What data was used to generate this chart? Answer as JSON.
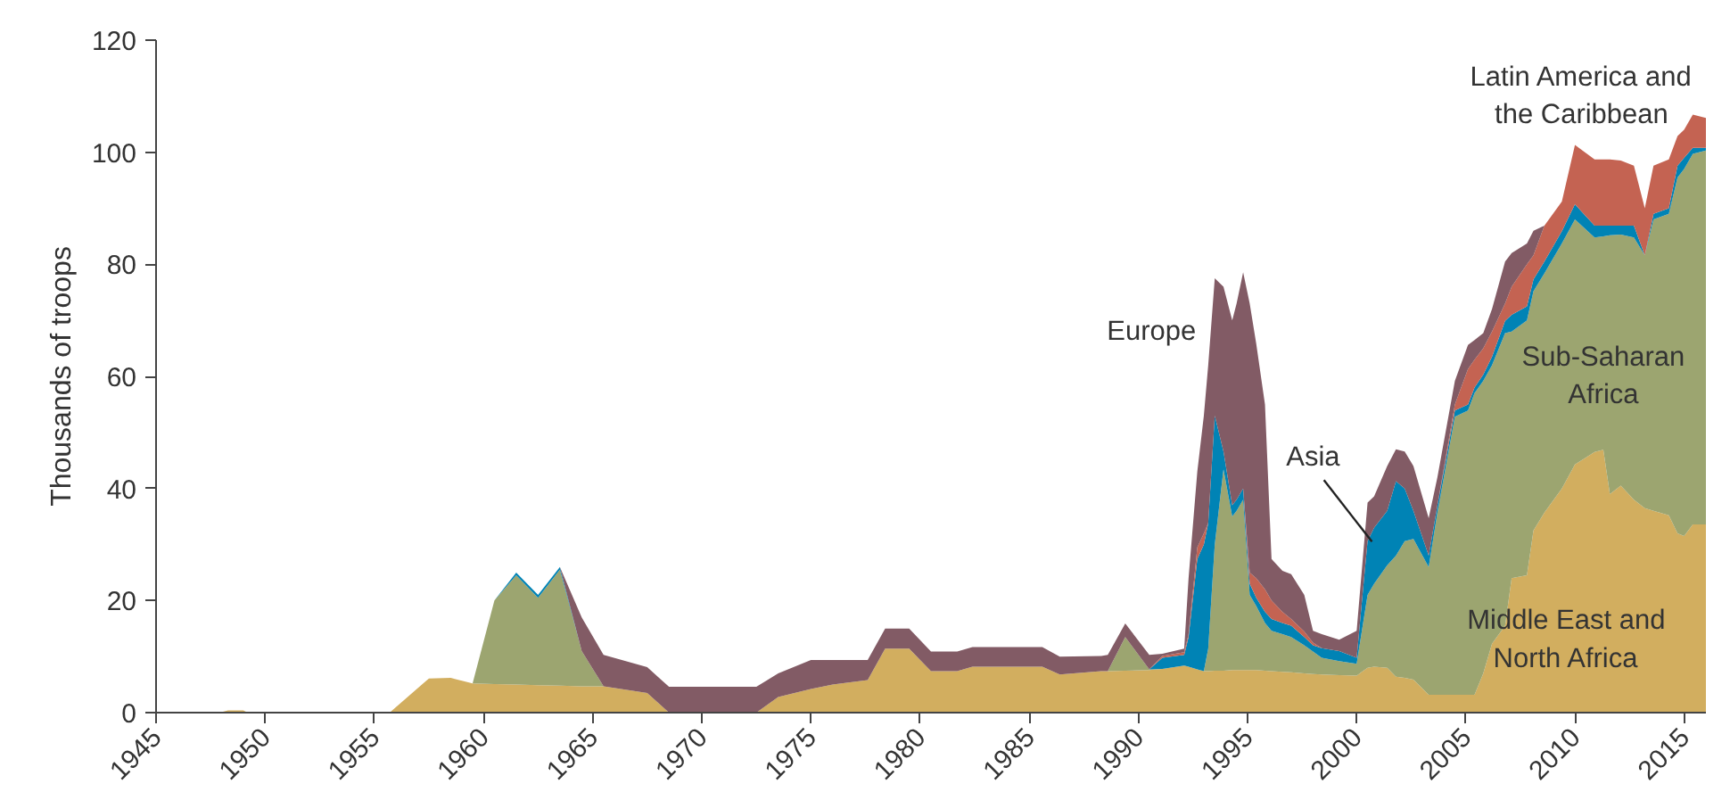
{
  "chart_data": {
    "type": "area",
    "stacked": true,
    "ylabel": "Thousands of troops",
    "x": [
      1945,
      1947.9,
      1948.3,
      1949,
      1949.2,
      1955.7,
      1957.5,
      1958.5,
      1959.5,
      1960.5,
      1961.5,
      1962.5,
      1963.5,
      1964.5,
      1965.5,
      1967.5,
      1968.5,
      1972.5,
      1973.5,
      1975,
      1976,
      1977.6,
      1978.4,
      1979.5,
      1980.5,
      1981.7,
      1982.4,
      1985.6,
      1986.4,
      1988.3,
      1988.6,
      1989.4,
      1990.5,
      1991.1,
      1992.1,
      1992.3,
      1992.7,
      1993.0,
      1993.2,
      1993.5,
      1993.9,
      1994.3,
      1994.5,
      1994.8,
      1995.1,
      1995.4,
      1995.8,
      1996.1,
      1996.6,
      1997.0,
      1997.6,
      1998.0,
      1998.4,
      1999.2,
      2000.0,
      2000.5,
      2000.8,
      2001.4,
      2001.8,
      2002.2,
      2002.6,
      2003.3,
      2003.7,
      2004.5,
      2005.1,
      2005.4,
      2005.8,
      2006.2,
      2006.8,
      2007.1,
      2007.8,
      2008.1,
      2008.6,
      2009.4,
      2010.0,
      2010.9,
      2011.3,
      2011.6,
      2012.1,
      2012.7,
      2013.2,
      2013.6,
      2014.3,
      2014.7,
      2015.0,
      2015.4,
      2016.0
    ],
    "series": [
      {
        "color": "#d2ae5f",
        "values": [
          0,
          0,
          0.4,
          0.4,
          0,
          0,
          6.1,
          6.2,
          5.2,
          5.1,
          5,
          4.9,
          4.8,
          4.7,
          4.7,
          3.5,
          0,
          0,
          2.8,
          4.2,
          5,
          5.8,
          11.4,
          11.4,
          7.4,
          7.4,
          8.2,
          8.2,
          6.8,
          7.4,
          7.4,
          7.5,
          7.6,
          7.8,
          8.4,
          8.2,
          7.7,
          7.4,
          7.4,
          7.5,
          7.5,
          7.6,
          7.6,
          7.6,
          7.6,
          7.6,
          7.5,
          7.4,
          7.3,
          7.2,
          7,
          6.9,
          6.8,
          6.7,
          6.6,
          8,
          8.2,
          8,
          6.4,
          6.2,
          5.9,
          3.2,
          3.2,
          3.2,
          3.2,
          3.2,
          7,
          12.3,
          15.5,
          24,
          24.5,
          32.5,
          35.7,
          40,
          44.3,
          46.5,
          46.9,
          39,
          40.5,
          38,
          36.5,
          36,
          35.2,
          32,
          31.5,
          33.6,
          33.6
        ]
      },
      {
        "color": "#9ca570",
        "values": [
          null,
          null,
          null,
          null,
          null,
          null,
          null,
          null,
          0,
          14.9,
          19.5,
          15.6,
          20.7,
          6.3,
          0,
          null,
          null,
          null,
          null,
          null,
          null,
          null,
          null,
          null,
          null,
          null,
          null,
          null,
          null,
          null,
          0,
          6,
          0.1,
          0,
          null,
          null,
          null,
          0,
          4,
          22.5,
          35.9,
          27.4,
          28.4,
          30.4,
          13.4,
          11.4,
          8.5,
          7.2,
          6.7,
          6.3,
          5,
          4,
          3,
          2.5,
          2.1,
          13,
          14.8,
          18.3,
          21.6,
          24.4,
          25.1,
          22.8,
          32.5,
          49.6,
          50.7,
          53.8,
          52.2,
          49.7,
          52.2,
          44,
          45.5,
          42.7,
          42.7,
          43.7,
          43.7,
          38.3,
          38.1,
          46.2,
          44.8,
          46.8,
          45.1,
          52,
          53.8,
          63.5,
          65.5,
          66.1,
          66.7
        ]
      },
      {
        "color": "#0083b5",
        "values": [
          null,
          null,
          null,
          null,
          null,
          null,
          null,
          null,
          null,
          0,
          0.5,
          0.5,
          0.5,
          0,
          null,
          null,
          null,
          null,
          null,
          null,
          null,
          null,
          null,
          null,
          null,
          null,
          null,
          null,
          null,
          null,
          null,
          null,
          0,
          2,
          1.9,
          5.3,
          19.7,
          22.6,
          22.4,
          23,
          3.2,
          2,
          2,
          2,
          2,
          1.5,
          2,
          2.1,
          2,
          2,
          1.5,
          1.1,
          1.7,
          1.8,
          1.1,
          9.6,
          10,
          9.7,
          13.3,
          9.4,
          5,
          2,
          1.3,
          1.1,
          1.1,
          1,
          1.1,
          1.5,
          2.2,
          3,
          2.5,
          2.1,
          2.1,
          2.2,
          2.7,
          2.1,
          1.9,
          1.7,
          1.6,
          2.1,
          0,
          1,
          1,
          2.1,
          2,
          1.1,
          0.5
        ]
      },
      {
        "color": "#c46352",
        "values": [
          null,
          null,
          null,
          null,
          null,
          null,
          null,
          null,
          null,
          null,
          null,
          null,
          null,
          null,
          null,
          null,
          null,
          null,
          null,
          null,
          null,
          null,
          null,
          null,
          null,
          null,
          null,
          null,
          null,
          null,
          null,
          null,
          0,
          0.3,
          0.5,
          0.5,
          2.1,
          2,
          0,
          null,
          null,
          null,
          null,
          0,
          2,
          3.5,
          4,
          3.3,
          2,
          1.2,
          1,
          0.5,
          0,
          null,
          null,
          null,
          null,
          null,
          null,
          null,
          null,
          null,
          0,
          1.1,
          6.3,
          5,
          4.7,
          4.5,
          3.1,
          5,
          7.5,
          4.3,
          6.4,
          5.3,
          10.6,
          11.8,
          11.8,
          11.8,
          11.6,
          10.7,
          8.4,
          8.6,
          8.7,
          5.3,
          5,
          5.9,
          5.3
        ]
      },
      {
        "color": "#825b65",
        "values": [
          null,
          null,
          null,
          null,
          null,
          null,
          null,
          null,
          null,
          null,
          null,
          null,
          0,
          6,
          5.6,
          4.6,
          4.6,
          4.6,
          4.2,
          5.2,
          4.4,
          3.6,
          3.6,
          3.6,
          3.5,
          3.5,
          3.5,
          3.5,
          3.2,
          2.7,
          2.9,
          2.4,
          2.6,
          0.4,
          0.6,
          10,
          13.5,
          21,
          28.2,
          24.5,
          29.4,
          33,
          35,
          38.6,
          48,
          41.8,
          33,
          7.4,
          7.3,
          8,
          6.5,
          2.1,
          2.5,
          2,
          4.8,
          6.9,
          5.6,
          8,
          5.7,
          6.6,
          8,
          6.7,
          5,
          4.2,
          4.3,
          3.5,
          2.7,
          4,
          7.5,
          6,
          3.7,
          4.4,
          0,
          null,
          null,
          null,
          null,
          null,
          null,
          null,
          null,
          null,
          null,
          null,
          null,
          null,
          null
        ]
      }
    ],
    "xlim": [
      1945,
      2016
    ],
    "ylim": [
      0,
      120
    ],
    "xticks": [
      1945,
      1950,
      1955,
      1960,
      1965,
      1970,
      1975,
      1980,
      1985,
      1990,
      1995,
      2000,
      2005,
      2010,
      2015
    ],
    "yticks": [
      0,
      20,
      40,
      60,
      80,
      100,
      120
    ],
    "annotations": [
      "Europe",
      {
        "text": "Asia",
        "x": 2000.7,
        "y": 30.5
      },
      "Latin America and\nthe Caribbean",
      "Sub-Saharan\nAfrica",
      "Middle East and\nNorth Africa"
    ]
  }
}
